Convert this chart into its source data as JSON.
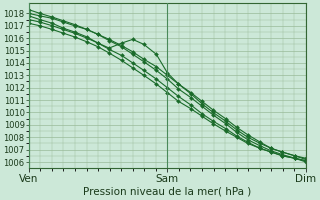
{
  "xlabel": "Pression niveau de la mer( hPa )",
  "xtick_labels": [
    "Ven",
    "Sam",
    "Dim"
  ],
  "xtick_positions": [
    0,
    1,
    2
  ],
  "ylim": [
    1005.5,
    1018.8
  ],
  "yticks": [
    1006,
    1007,
    1008,
    1009,
    1010,
    1011,
    1012,
    1013,
    1014,
    1015,
    1016,
    1017,
    1018
  ],
  "bg_color": "#cce8d8",
  "line_color": "#1a6b2a",
  "grid_color": "#99bb99",
  "lines": [
    {
      "x": [
        0.0,
        0.08,
        0.17,
        0.25,
        0.33,
        0.42,
        0.5,
        0.58,
        0.67,
        0.75,
        0.83,
        0.92,
        1.0,
        1.08,
        1.17,
        1.25,
        1.33,
        1.42,
        1.5,
        1.58,
        1.67,
        1.75,
        1.83,
        1.92,
        2.0
      ],
      "y": [
        1018.0,
        1017.8,
        1017.6,
        1017.3,
        1017.0,
        1016.7,
        1016.3,
        1015.9,
        1015.4,
        1014.9,
        1014.3,
        1013.7,
        1013.0,
        1012.3,
        1011.6,
        1010.9,
        1010.2,
        1009.5,
        1008.8,
        1008.2,
        1007.6,
        1007.1,
        1006.8,
        1006.5,
        1006.2
      ]
    },
    {
      "x": [
        0.0,
        0.08,
        0.17,
        0.25,
        0.33,
        0.42,
        0.5,
        0.58,
        0.67,
        0.75,
        0.83,
        0.92,
        1.0,
        1.08,
        1.17,
        1.25,
        1.33,
        1.42,
        1.5,
        1.58,
        1.67,
        1.75,
        1.83,
        1.92,
        2.0
      ],
      "y": [
        1018.3,
        1018.0,
        1017.7,
        1017.4,
        1017.1,
        1016.7,
        1016.3,
        1015.8,
        1015.3,
        1014.7,
        1014.1,
        1013.4,
        1012.7,
        1011.9,
        1011.2,
        1010.5,
        1009.8,
        1009.1,
        1008.4,
        1007.8,
        1007.3,
        1006.9,
        1006.6,
        1006.3,
        1006.1
      ]
    },
    {
      "x": [
        0.0,
        0.08,
        0.17,
        0.25,
        0.33,
        0.42,
        0.5,
        0.58,
        0.67,
        0.75,
        0.83,
        0.92,
        1.0,
        1.08,
        1.17,
        1.25,
        1.33,
        1.42,
        1.5,
        1.58,
        1.67,
        1.75,
        1.83,
        1.92,
        2.0
      ],
      "y": [
        1017.5,
        1017.3,
        1017.0,
        1016.7,
        1016.4,
        1016.0,
        1015.6,
        1015.1,
        1014.6,
        1014.0,
        1013.4,
        1012.7,
        1012.0,
        1011.3,
        1010.6,
        1009.9,
        1009.3,
        1008.7,
        1008.1,
        1007.6,
        1007.1,
        1006.8,
        1006.5,
        1006.3,
        1006.0
      ]
    },
    {
      "x": [
        0.0,
        0.08,
        0.17,
        0.25,
        0.33,
        0.42,
        0.5,
        0.58,
        0.67,
        0.75,
        0.83,
        0.92,
        1.0,
        1.08,
        1.17,
        1.25,
        1.33,
        1.42,
        1.5,
        1.58,
        1.67,
        1.75,
        1.83,
        1.92,
        2.0
      ],
      "y": [
        1017.8,
        1017.5,
        1017.2,
        1016.8,
        1016.5,
        1016.1,
        1015.6,
        1015.2,
        1015.6,
        1015.9,
        1015.5,
        1014.7,
        1013.2,
        1012.3,
        1011.5,
        1010.7,
        1010.0,
        1009.3,
        1008.6,
        1008.0,
        1007.5,
        1007.1,
        1006.8,
        1006.5,
        1006.3
      ]
    },
    {
      "x": [
        0.0,
        0.08,
        0.17,
        0.25,
        0.33,
        0.42,
        0.5,
        0.58,
        0.67,
        0.75,
        0.83,
        0.92,
        1.0,
        1.08,
        1.17,
        1.25,
        1.33,
        1.42,
        1.5,
        1.58,
        1.67,
        1.75,
        1.83,
        1.92,
        2.0
      ],
      "y": [
        1017.2,
        1017.0,
        1016.7,
        1016.4,
        1016.1,
        1015.7,
        1015.3,
        1014.8,
        1014.2,
        1013.6,
        1013.0,
        1012.3,
        1011.6,
        1010.9,
        1010.3,
        1009.7,
        1009.1,
        1008.5,
        1008.0,
        1007.5,
        1007.1,
        1006.8,
        1006.5,
        1006.3,
        1006.1
      ]
    }
  ],
  "marker": "D",
  "markersize": 2.0,
  "linewidth": 0.8,
  "xlabel_fontsize": 7.5,
  "tick_fontsize": 6.0,
  "xtick_fontsize": 7.5,
  "vline_color": "#4a8a5a",
  "spine_color": "#336633"
}
